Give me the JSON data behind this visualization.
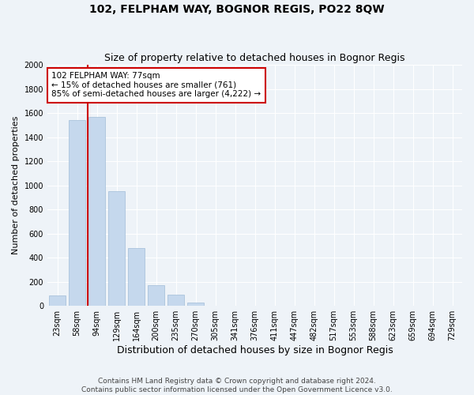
{
  "title": "102, FELPHAM WAY, BOGNOR REGIS, PO22 8QW",
  "subtitle": "Size of property relative to detached houses in Bognor Regis",
  "xlabel": "Distribution of detached houses by size in Bognor Regis",
  "ylabel": "Number of detached properties",
  "footer_line1": "Contains HM Land Registry data © Crown copyright and database right 2024.",
  "footer_line2": "Contains public sector information licensed under the Open Government Licence v3.0.",
  "categories": [
    "23sqm",
    "58sqm",
    "94sqm",
    "129sqm",
    "164sqm",
    "200sqm",
    "235sqm",
    "270sqm",
    "305sqm",
    "341sqm",
    "376sqm",
    "411sqm",
    "447sqm",
    "482sqm",
    "517sqm",
    "553sqm",
    "588sqm",
    "623sqm",
    "659sqm",
    "694sqm",
    "729sqm"
  ],
  "values": [
    85,
    1540,
    1565,
    950,
    480,
    175,
    95,
    30,
    0,
    0,
    0,
    0,
    0,
    0,
    0,
    0,
    0,
    0,
    0,
    0,
    0
  ],
  "bar_color": "#c5d8ed",
  "bar_edge_color": "#a0bcd8",
  "ylim": [
    0,
    2000
  ],
  "yticks": [
    0,
    200,
    400,
    600,
    800,
    1000,
    1200,
    1400,
    1600,
    1800,
    2000
  ],
  "annotation_text": "102 FELPHAM WAY: 77sqm\n← 15% of detached houses are smaller (761)\n85% of semi-detached houses are larger (4,222) →",
  "annotation_box_color": "#ffffff",
  "annotation_box_edge": "#cc0000",
  "vline_color": "#cc0000",
  "background_color": "#eef3f8",
  "grid_color": "#ffffff",
  "title_fontsize": 10,
  "subtitle_fontsize": 9,
  "ylabel_fontsize": 8,
  "xlabel_fontsize": 9,
  "tick_fontsize": 7,
  "footer_fontsize": 6.5,
  "annot_fontsize": 7.5
}
